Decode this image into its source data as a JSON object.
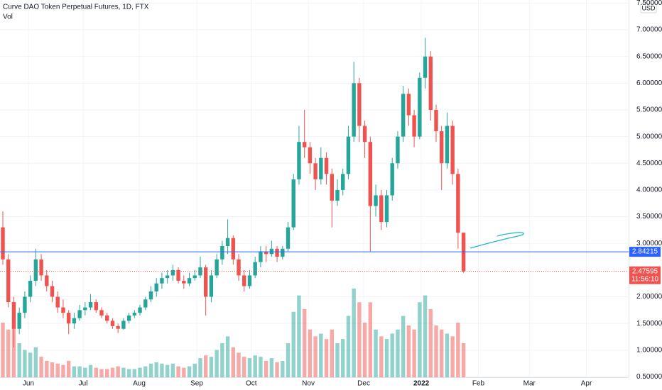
{
  "chart_data": {
    "type": "candlestick",
    "title": "Curve DAO Token Perpetual Futures, 1D, FTX",
    "volume_label": "Vol",
    "currency": "USD",
    "up_color": "#26a69a",
    "down_color": "#ef5350",
    "xlim": [
      -0.52,
      114.1
    ],
    "xticks": [
      {
        "value": 4.66,
        "label": "Jun"
      },
      {
        "value": 14.64,
        "label": "Jul"
      },
      {
        "value": 24.87,
        "label": "Aug"
      },
      {
        "value": 35.36,
        "label": "Sep"
      },
      {
        "value": 45.3,
        "label": "Oct"
      },
      {
        "value": 55.7,
        "label": "Nov"
      },
      {
        "value": 65.8,
        "label": "Dec"
      },
      {
        "value": 76.3,
        "label": "2022"
      },
      {
        "value": 86.7,
        "label": "Feb"
      },
      {
        "value": 96.0,
        "label": "Mar"
      },
      {
        "value": 106.4,
        "label": "Apr"
      }
    ],
    "ylim": [
      0.254,
      7.558
    ],
    "yticks": [
      {
        "value": 0.5,
        "label": "0.50000"
      },
      {
        "value": 1.0,
        "label": "1.00000"
      },
      {
        "value": 1.5,
        "label": "1.50000"
      },
      {
        "value": 2.0,
        "label": "2.00000"
      },
      {
        "value": 3.0,
        "label": "3.00000"
      },
      {
        "value": 3.5,
        "label": "3.50000"
      },
      {
        "value": 4.0,
        "label": "4.00000"
      },
      {
        "value": 4.5,
        "label": "4.50000"
      },
      {
        "value": 5.0,
        "label": "5.00000"
      },
      {
        "value": 5.5,
        "label": "5.50000"
      },
      {
        "value": 6.0,
        "label": "6.00000"
      },
      {
        "value": 6.5,
        "label": "6.50000"
      },
      {
        "value": 7.0,
        "label": "7.00000"
      },
      {
        "value": 7.5,
        "label": "7.50000"
      }
    ],
    "horizontal_line": {
      "value": 2.84215,
      "label": "2.84215",
      "color": "#2962ff"
    },
    "last_price": {
      "value": 2.47595,
      "label": "2.47595",
      "color": "#ef5350"
    },
    "countdown": "11:56:10",
    "candles": [
      [
        3.3,
        3.6,
        2.6,
        2.7,
        40
      ],
      [
        2.7,
        2.8,
        1.8,
        1.9,
        35
      ],
      [
        1.9,
        2.0,
        1.05,
        1.4,
        38
      ],
      [
        1.4,
        1.8,
        1.3,
        1.7,
        25
      ],
      [
        1.7,
        2.1,
        1.6,
        2.0,
        20
      ],
      [
        2.0,
        2.4,
        1.9,
        2.3,
        18
      ],
      [
        2.3,
        2.9,
        2.2,
        2.7,
        22
      ],
      [
        2.7,
        2.8,
        2.3,
        2.4,
        15
      ],
      [
        2.4,
        2.5,
        2.1,
        2.2,
        12
      ],
      [
        2.2,
        2.3,
        1.9,
        2.0,
        11
      ],
      [
        2.0,
        2.1,
        1.7,
        1.8,
        10
      ],
      [
        1.8,
        1.95,
        1.6,
        1.7,
        9
      ],
      [
        1.7,
        1.75,
        1.3,
        1.5,
        12
      ],
      [
        1.5,
        1.7,
        1.4,
        1.6,
        8
      ],
      [
        1.6,
        1.85,
        1.55,
        1.75,
        8
      ],
      [
        1.75,
        1.9,
        1.65,
        1.8,
        7
      ],
      [
        1.8,
        2.05,
        1.75,
        1.9,
        9
      ],
      [
        1.9,
        1.95,
        1.7,
        1.75,
        7
      ],
      [
        1.75,
        1.8,
        1.6,
        1.65,
        6
      ],
      [
        1.65,
        1.7,
        1.5,
        1.55,
        6
      ],
      [
        1.55,
        1.6,
        1.4,
        1.45,
        7
      ],
      [
        1.45,
        1.5,
        1.32,
        1.4,
        8
      ],
      [
        1.4,
        1.6,
        1.38,
        1.55,
        7
      ],
      [
        1.55,
        1.7,
        1.5,
        1.65,
        6
      ],
      [
        1.65,
        1.75,
        1.6,
        1.7,
        6
      ],
      [
        1.7,
        1.85,
        1.65,
        1.8,
        7
      ],
      [
        1.8,
        2.0,
        1.75,
        1.95,
        8
      ],
      [
        1.95,
        2.2,
        1.9,
        2.1,
        10
      ],
      [
        2.1,
        2.35,
        2.0,
        2.25,
        11
      ],
      [
        2.25,
        2.45,
        2.15,
        2.35,
        10
      ],
      [
        2.35,
        2.5,
        2.25,
        2.4,
        9
      ],
      [
        2.4,
        2.6,
        2.3,
        2.5,
        10
      ],
      [
        2.5,
        2.55,
        2.25,
        2.3,
        8
      ],
      [
        2.3,
        2.4,
        2.15,
        2.25,
        7
      ],
      [
        2.25,
        2.45,
        2.2,
        2.35,
        8
      ],
      [
        2.35,
        2.5,
        2.3,
        2.4,
        10
      ],
      [
        2.4,
        2.75,
        2.35,
        2.55,
        14
      ],
      [
        2.55,
        2.6,
        1.65,
        2.0,
        16
      ],
      [
        2.0,
        2.5,
        1.9,
        2.4,
        15
      ],
      [
        2.4,
        2.8,
        2.35,
        2.7,
        20
      ],
      [
        2.7,
        3.05,
        2.6,
        2.95,
        25
      ],
      [
        2.95,
        3.45,
        2.8,
        3.1,
        30
      ],
      [
        3.1,
        3.15,
        2.6,
        2.7,
        22
      ],
      [
        2.7,
        2.8,
        2.3,
        2.4,
        18
      ],
      [
        2.4,
        2.5,
        2.1,
        2.2,
        15
      ],
      [
        2.2,
        2.5,
        2.15,
        2.4,
        14
      ],
      [
        2.4,
        2.75,
        2.35,
        2.65,
        16
      ],
      [
        2.65,
        2.95,
        2.55,
        2.85,
        15
      ],
      [
        2.85,
        2.95,
        2.65,
        2.8,
        12
      ],
      [
        2.8,
        3.05,
        2.75,
        2.9,
        14
      ],
      [
        2.9,
        2.95,
        2.65,
        2.75,
        11
      ],
      [
        2.75,
        2.95,
        2.7,
        2.9,
        12
      ],
      [
        2.9,
        3.4,
        2.85,
        3.3,
        25
      ],
      [
        3.3,
        4.3,
        3.25,
        4.2,
        48
      ],
      [
        4.2,
        5.2,
        4.1,
        4.9,
        60
      ],
      [
        4.9,
        5.5,
        4.6,
        4.8,
        50
      ],
      [
        4.8,
        4.9,
        4.3,
        4.5,
        35
      ],
      [
        4.5,
        4.6,
        4.0,
        4.2,
        30
      ],
      [
        4.2,
        4.8,
        4.1,
        4.6,
        32
      ],
      [
        4.6,
        4.7,
        4.1,
        4.3,
        28
      ],
      [
        4.3,
        4.4,
        3.3,
        3.8,
        35
      ],
      [
        3.8,
        4.2,
        3.7,
        4.0,
        25
      ],
      [
        4.0,
        4.4,
        3.9,
        4.3,
        28
      ],
      [
        4.3,
        5.2,
        4.2,
        5.0,
        45
      ],
      [
        5.0,
        6.4,
        4.9,
        6.0,
        65
      ],
      [
        6.0,
        6.1,
        4.9,
        5.2,
        55
      ],
      [
        5.2,
        5.3,
        4.6,
        4.9,
        40
      ],
      [
        4.9,
        5.0,
        2.85,
        3.7,
        55
      ],
      [
        3.7,
        4.1,
        3.5,
        3.9,
        35
      ],
      [
        3.9,
        4.0,
        3.25,
        3.4,
        30
      ],
      [
        3.4,
        4.0,
        3.3,
        3.9,
        28
      ],
      [
        3.9,
        4.6,
        3.8,
        4.5,
        32
      ],
      [
        4.5,
        5.1,
        4.4,
        5.0,
        35
      ],
      [
        5.0,
        5.95,
        4.9,
        5.8,
        45
      ],
      [
        5.8,
        5.9,
        5.2,
        5.4,
        38
      ],
      [
        5.4,
        5.5,
        4.8,
        5.0,
        35
      ],
      [
        5.0,
        6.2,
        4.95,
        6.1,
        55
      ],
      [
        6.1,
        6.85,
        5.9,
        6.5,
        60
      ],
      [
        6.5,
        6.6,
        5.3,
        5.5,
        50
      ],
      [
        5.5,
        5.6,
        4.9,
        5.1,
        38
      ],
      [
        5.1,
        5.2,
        4.0,
        4.5,
        35
      ],
      [
        4.5,
        5.45,
        4.4,
        5.2,
        32
      ],
      [
        5.2,
        5.3,
        4.1,
        4.3,
        30
      ],
      [
        4.3,
        4.4,
        2.9,
        3.2,
        40
      ],
      [
        3.2,
        3.2,
        2.45,
        2.47595,
        25
      ]
    ]
  }
}
